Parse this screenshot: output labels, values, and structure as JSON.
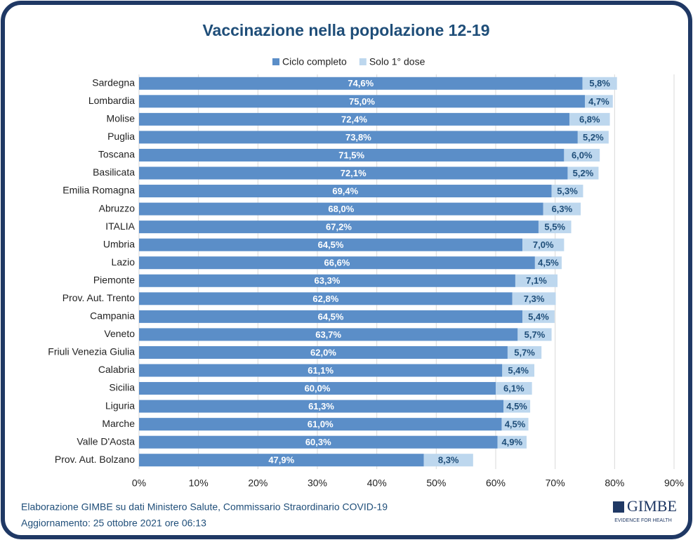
{
  "chart_data": {
    "type": "stacked-barh",
    "title": "Vaccinazione nella popolazione 12-19",
    "categories": [
      "Sardegna",
      "Lombardia",
      "Molise",
      "Puglia",
      "Toscana",
      "Basilicata",
      "Emilia Romagna",
      "Abruzzo",
      "ITALIA",
      "Umbria",
      "Lazio",
      "Piemonte",
      "Prov. Aut. Trento",
      "Campania",
      "Veneto",
      "Friuli Venezia Giulia",
      "Calabria",
      "Sicilia",
      "Liguria",
      "Marche",
      "Valle D'Aosta",
      "Prov. Aut. Bolzano"
    ],
    "series": [
      {
        "name": "Ciclo completo",
        "color": "#5b8ec8",
        "values": [
          74.6,
          75.0,
          72.4,
          73.8,
          71.5,
          72.1,
          69.4,
          68.0,
          67.2,
          64.5,
          66.6,
          63.3,
          62.8,
          64.5,
          63.7,
          62.0,
          61.1,
          60.0,
          61.3,
          61.0,
          60.3,
          47.9
        ],
        "value_labels": [
          "74,6%",
          "75,0%",
          "72,4%",
          "73,8%",
          "71,5%",
          "72,1%",
          "69,4%",
          "68,0%",
          "67,2%",
          "64,5%",
          "66,6%",
          "63,3%",
          "62,8%",
          "64,5%",
          "63,7%",
          "62,0%",
          "61,1%",
          "60,0%",
          "61,3%",
          "61,0%",
          "60,3%",
          "47,9%"
        ]
      },
      {
        "name": "Solo 1° dose",
        "color": "#bdd7ee",
        "values": [
          5.8,
          4.7,
          6.8,
          5.2,
          6.0,
          5.2,
          5.3,
          6.3,
          5.5,
          7.0,
          4.5,
          7.1,
          7.3,
          5.4,
          5.7,
          5.7,
          5.4,
          6.1,
          4.5,
          4.5,
          4.9,
          8.3
        ],
        "value_labels": [
          "5,8%",
          "4,7%",
          "6,8%",
          "5,2%",
          "6,0%",
          "5,2%",
          "5,3%",
          "6,3%",
          "5,5%",
          "7,0%",
          "4,5%",
          "7,1%",
          "7,3%",
          "5,4%",
          "5,7%",
          "5,7%",
          "5,4%",
          "6,1%",
          "4,5%",
          "4,5%",
          "4,9%",
          "8,3%"
        ]
      }
    ],
    "xlim": [
      0,
      90
    ],
    "xticks": [
      {
        "value": 0,
        "label": "0%"
      },
      {
        "value": 10,
        "label": "10%"
      },
      {
        "value": 20,
        "label": "20%"
      },
      {
        "value": 30,
        "label": "30%"
      },
      {
        "value": 40,
        "label": "40%"
      },
      {
        "value": 50,
        "label": "50%"
      },
      {
        "value": 60,
        "label": "60%"
      },
      {
        "value": 70,
        "label": "70%"
      },
      {
        "value": 80,
        "label": "80%"
      },
      {
        "value": 90,
        "label": "90%"
      }
    ],
    "grid": true,
    "legend": "top",
    "source": "Elaborazione GIMBE su dati Ministero Salute, Commissario Straordinario COVID-19",
    "updated": "Aggiornamento: 25 ottobre 2021 ore 06:13"
  },
  "logo": {
    "name": "GIMBE",
    "tagline": "EVIDENCE FOR HEALTH"
  }
}
